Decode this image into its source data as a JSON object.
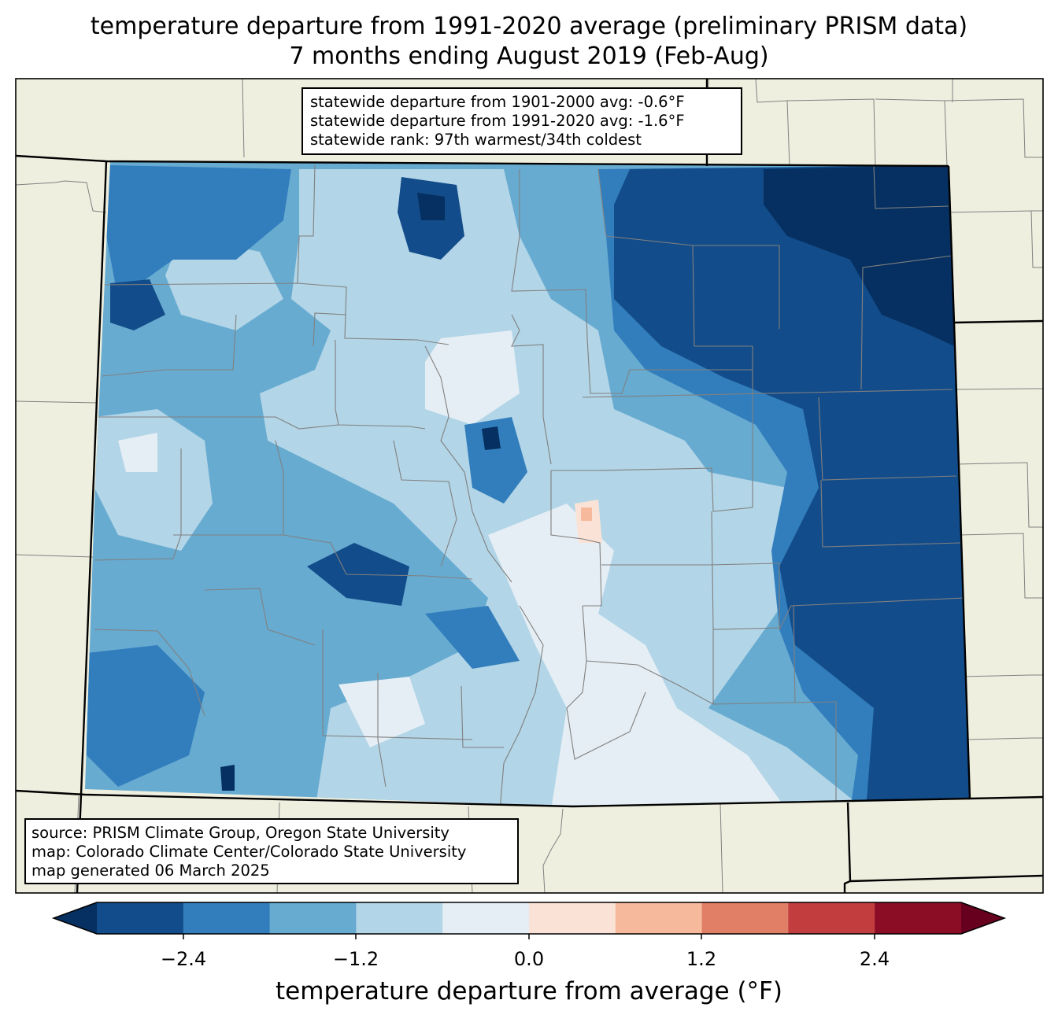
{
  "title": {
    "line1": "temperature departure from 1991-2020 average (preliminary PRISM data)",
    "line2": "7 months ending August 2019 (Feb-Aug)"
  },
  "stats_box": {
    "line1": "statewide departure from 1901-2000 avg: -0.6°F",
    "line2": "statewide departure from 1991-2020 avg: -1.6°F",
    "line3": "statewide rank: 97th warmest/34th coldest"
  },
  "source_box": {
    "line1": "source: PRISM Climate Group, Oregon State University",
    "line2": "map: Colorado Climate Center/Colorado State University",
    "line3": "map generated 06 March 2025"
  },
  "colorbar": {
    "label": "temperature departure from average (°F)",
    "ticks": [
      "−2.4",
      "−1.2",
      "0.0",
      "1.2",
      "2.4"
    ],
    "colors": {
      "extend_low": "#053061",
      "bins": [
        "#134c8a",
        "#327ebd",
        "#67abd1",
        "#b2d5e7",
        "#e5eef4",
        "#fae3d6",
        "#f7b99b",
        "#e17e66",
        "#c23d3e",
        "#8a0d25"
      ],
      "extend_high": "#67001f"
    }
  },
  "map_colors": {
    "land_background": "#efefdf",
    "county_lines": "#808080",
    "state_lines": "#000000"
  }
}
